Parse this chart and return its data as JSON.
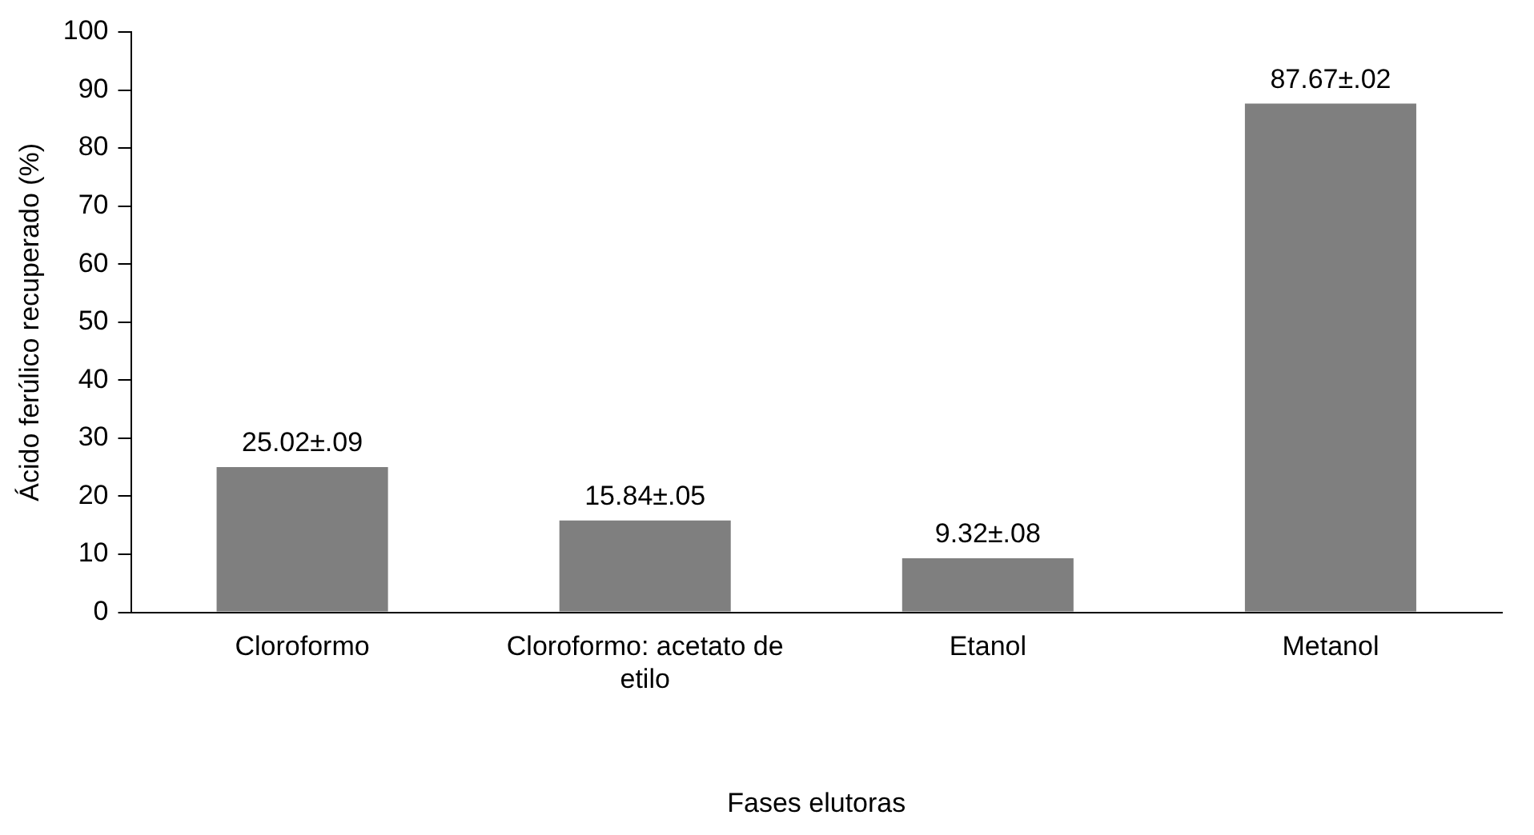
{
  "chart_data": {
    "type": "bar",
    "xlabel": "Fases elutoras",
    "ylabel": "Ácido ferúlico recuperado (%)",
    "categories": [
      "Cloroformo",
      "Cloroformo: acetato de etilo",
      "Etanol",
      "Metanol"
    ],
    "values": [
      25.02,
      15.84,
      9.32,
      87.67
    ],
    "value_labels": [
      "25.02±.09",
      "15.84±.05",
      "9.32±.08",
      "87.67±.02"
    ],
    "color": "#7f7f7f",
    "ylim": [
      0,
      100
    ],
    "yticks": [
      0,
      10,
      20,
      30,
      40,
      50,
      60,
      70,
      80,
      90,
      100
    ],
    "grid": false,
    "legend": false
  }
}
